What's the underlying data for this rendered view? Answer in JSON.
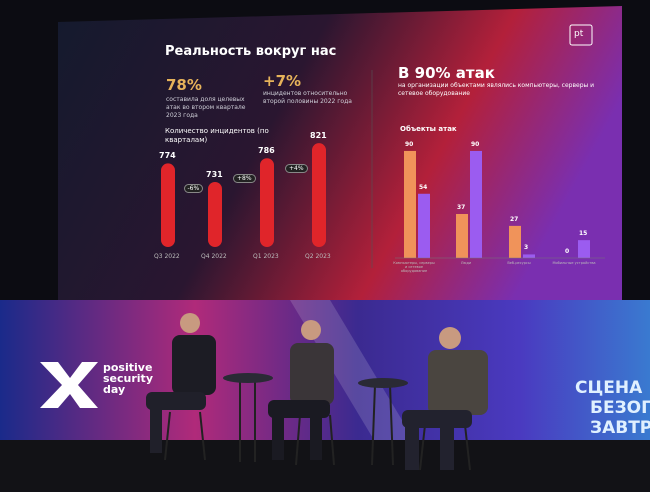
{
  "slide": {
    "title": "Реальность вокруг нас",
    "logo": "pt",
    "stats": [
      {
        "value": "78%",
        "text": "составила доля целевых атак во втором квартале 2023 года"
      },
      {
        "value": "+7%",
        "text": "инцидентов относительно второй половины 2022 года"
      }
    ],
    "headline": "В 90% атак",
    "headline_text": "на организации объектами являлись компьютеры, серверы и сетевое оборудование"
  },
  "chart_data": [
    {
      "type": "bar",
      "title": "Количество инцидентов (по кварталам)",
      "categories": [
        "Q3 2022",
        "Q4 2022",
        "Q1 2023",
        "Q2 2023"
      ],
      "values": [
        774,
        731,
        786,
        821
      ],
      "annotations": [
        "-6%",
        "+8%",
        "+4%"
      ],
      "color": "#e0252a",
      "ylim": [
        580,
        840
      ]
    },
    {
      "type": "grouped-bar",
      "title": "Объекты атак",
      "categories": [
        "Компьютеры, серверы и сетевое оборудование",
        "Люди",
        "Веб-ресурсы",
        "Мобильные устройства"
      ],
      "series": [
        {
          "color": "#f0935a",
          "values": [
            90,
            37,
            27,
            0
          ]
        },
        {
          "color": "#9b5cf0",
          "values": [
            54,
            90,
            3,
            15
          ]
        }
      ],
      "ylim": [
        0,
        95
      ]
    }
  ],
  "stage": {
    "brand": "positive security day",
    "wall_text": [
      "СЦЕНА",
      "БЕЗОП",
      "ЗАВТР"
    ]
  }
}
